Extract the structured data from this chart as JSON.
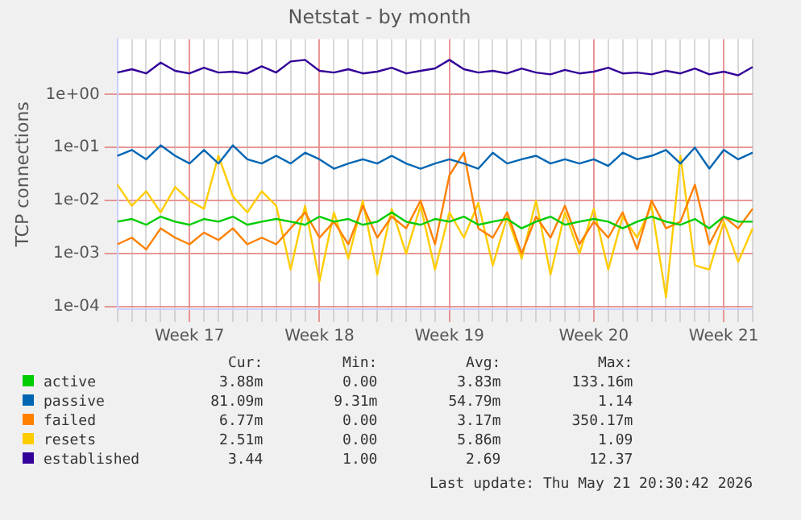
{
  "chart_data": {
    "type": "line",
    "title": "Netstat - by month",
    "ylabel": "TCP connections",
    "log": "y",
    "grid": true,
    "legend": "bottom",
    "marker": "none",
    "line_style": "solid",
    "categories": [
      null,
      null,
      null,
      null,
      null,
      "Week 17",
      null,
      null,
      null,
      null,
      null,
      null,
      null,
      null,
      "Week 18",
      null,
      null,
      null,
      null,
      null,
      null,
      null,
      null,
      "Week 19",
      null,
      null,
      null,
      null,
      null,
      null,
      null,
      null,
      null,
      "Week 20",
      null,
      null,
      null,
      null,
      null,
      null,
      null,
      null,
      "Week 21",
      null,
      null
    ],
    "ylim": [
      9e-05,
      11
    ],
    "yticks": [
      {
        "value": 0.0001,
        "label": "1e-04"
      },
      {
        "value": 0.001,
        "label": "1e-03"
      },
      {
        "value": 0.01,
        "label": "1e-02"
      },
      {
        "value": 0.1,
        "label": "1e-01"
      },
      {
        "value": 1,
        "label": "1e+00"
      }
    ],
    "series": [
      {
        "name": "active",
        "color": "#00cc00",
        "values": [
          0.004,
          0.0045,
          0.0035,
          0.005,
          0.004,
          0.0035,
          0.0045,
          0.004,
          0.005,
          0.0035,
          0.004,
          0.0045,
          0.004,
          0.0035,
          0.005,
          0.004,
          0.0045,
          0.0035,
          0.004,
          0.006,
          0.004,
          0.0035,
          0.0045,
          0.004,
          0.005,
          0.0035,
          0.004,
          0.0045,
          0.003,
          0.004,
          0.005,
          0.0035,
          0.004,
          0.0045,
          0.004,
          0.003,
          0.004,
          0.005,
          0.004,
          0.0035,
          0.0045,
          0.003,
          0.005,
          0.004,
          0.004
        ]
      },
      {
        "name": "passive",
        "color": "#0066b3",
        "values": [
          0.07,
          0.09,
          0.06,
          0.11,
          0.07,
          0.05,
          0.09,
          0.05,
          0.11,
          0.06,
          0.05,
          0.07,
          0.05,
          0.08,
          0.06,
          0.04,
          0.05,
          0.06,
          0.05,
          0.07,
          0.05,
          0.04,
          0.05,
          0.06,
          0.05,
          0.04,
          0.08,
          0.05,
          0.06,
          0.07,
          0.05,
          0.06,
          0.05,
          0.06,
          0.045,
          0.08,
          0.06,
          0.07,
          0.09,
          0.05,
          0.1,
          0.04,
          0.09,
          0.06,
          0.08
        ]
      },
      {
        "name": "failed",
        "color": "#ff8000",
        "values": [
          0.0015,
          0.002,
          0.0012,
          0.003,
          0.002,
          0.0015,
          0.0025,
          0.0018,
          0.003,
          0.0015,
          0.002,
          0.0015,
          0.003,
          0.006,
          0.002,
          0.004,
          0.0015,
          0.008,
          0.002,
          0.005,
          0.003,
          0.01,
          0.0015,
          0.03,
          0.08,
          0.003,
          0.002,
          0.006,
          0.001,
          0.005,
          0.002,
          0.008,
          0.0015,
          0.004,
          0.002,
          0.006,
          0.0012,
          0.01,
          0.003,
          0.004,
          0.02,
          0.0015,
          0.005,
          0.003,
          0.007
        ]
      },
      {
        "name": "resets",
        "color": "#ffcc00",
        "values": [
          0.02,
          0.008,
          0.015,
          0.006,
          0.018,
          0.01,
          0.007,
          0.07,
          0.012,
          0.006,
          0.015,
          0.008,
          0.0005,
          0.008,
          0.0003,
          0.006,
          0.0008,
          0.01,
          0.0004,
          0.007,
          0.001,
          0.008,
          0.0005,
          0.006,
          0.002,
          0.009,
          0.0006,
          0.005,
          0.0008,
          0.01,
          0.0004,
          0.006,
          0.001,
          0.007,
          0.0005,
          0.005,
          0.002,
          0.008,
          0.00015,
          0.07,
          0.0006,
          0.0005,
          0.004,
          0.0007,
          0.003
        ]
      },
      {
        "name": "established",
        "color": "#330099",
        "values": [
          2.6,
          3.0,
          2.5,
          4.0,
          2.8,
          2.5,
          3.2,
          2.6,
          2.7,
          2.5,
          3.4,
          2.6,
          4.2,
          4.5,
          2.8,
          2.6,
          3.0,
          2.5,
          2.7,
          3.2,
          2.5,
          2.8,
          3.1,
          4.5,
          3.0,
          2.6,
          2.8,
          2.5,
          3.1,
          2.6,
          2.4,
          2.9,
          2.5,
          2.7,
          3.2,
          2.5,
          2.6,
          2.4,
          2.8,
          2.5,
          3.1,
          2.4,
          2.7,
          2.3,
          3.3
        ]
      }
    ],
    "annotations": [
      "Cur:",
      "Min:",
      "Avg:",
      "Max:",
      "3.88m",
      "0.00",
      "3.83m",
      "133.16m",
      "81.09m",
      "9.31m",
      "54.79m",
      "1.14",
      "6.77m",
      "0.00",
      "3.17m",
      "350.17m",
      "2.51m",
      "0.00",
      "5.86m",
      "1.09",
      "3.44",
      "1.00",
      "2.69",
      "12.37",
      "Last update: Thu May 21 20:30:42 2026"
    ]
  }
}
